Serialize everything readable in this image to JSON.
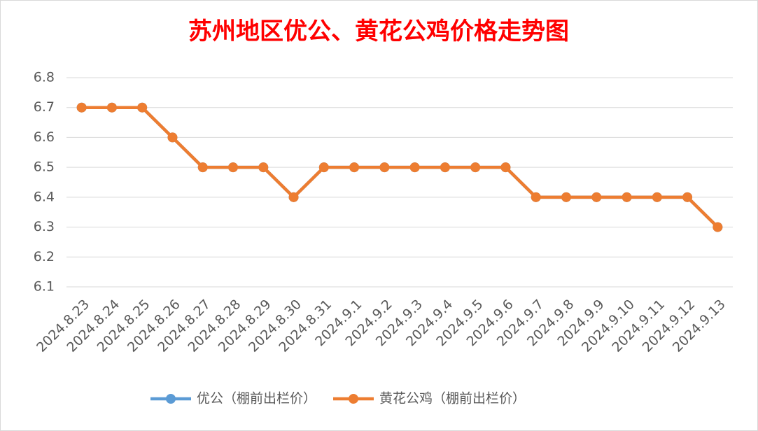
{
  "chart_data": {
    "type": "line",
    "title": "苏州地区优公、黄花公鸡价格走势图",
    "categories": [
      "2024.8.23",
      "2024.8.24",
      "2024.8.25",
      "2024.8.26",
      "2024.8.27",
      "2024.8.28",
      "2024.8.29",
      "2024.8.30",
      "2024.8.31",
      "2024.9.1",
      "2024.9.2",
      "2024.9.3",
      "2024.9.4",
      "2024.9.5",
      "2024.9.6",
      "2024.9.7",
      "2024.9.8",
      "2024.9.9",
      "2024.9.10",
      "2024.9.11",
      "2024.9.12",
      "2024.9.13"
    ],
    "series": [
      {
        "name": "优公（棚前出栏价）",
        "color": "#5b9bd5",
        "values": [
          6.7,
          6.7,
          6.7,
          6.6,
          6.5,
          6.5,
          6.5,
          6.4,
          6.5,
          6.5,
          6.5,
          6.5,
          6.5,
          6.5,
          6.5,
          6.4,
          6.4,
          6.4,
          6.4,
          6.4,
          6.4,
          6.3
        ]
      },
      {
        "name": "黄花公鸡（棚前出栏价）",
        "color": "#ed7d31",
        "values": [
          6.7,
          6.7,
          6.7,
          6.6,
          6.5,
          6.5,
          6.5,
          6.4,
          6.5,
          6.5,
          6.5,
          6.5,
          6.5,
          6.5,
          6.5,
          6.4,
          6.4,
          6.4,
          6.4,
          6.4,
          6.4,
          6.3
        ]
      }
    ],
    "ylim": [
      6.1,
      6.8
    ],
    "yticks": [
      6.1,
      6.2,
      6.3,
      6.4,
      6.5,
      6.6,
      6.7,
      6.8
    ],
    "grid": true,
    "legend": "bottom"
  }
}
